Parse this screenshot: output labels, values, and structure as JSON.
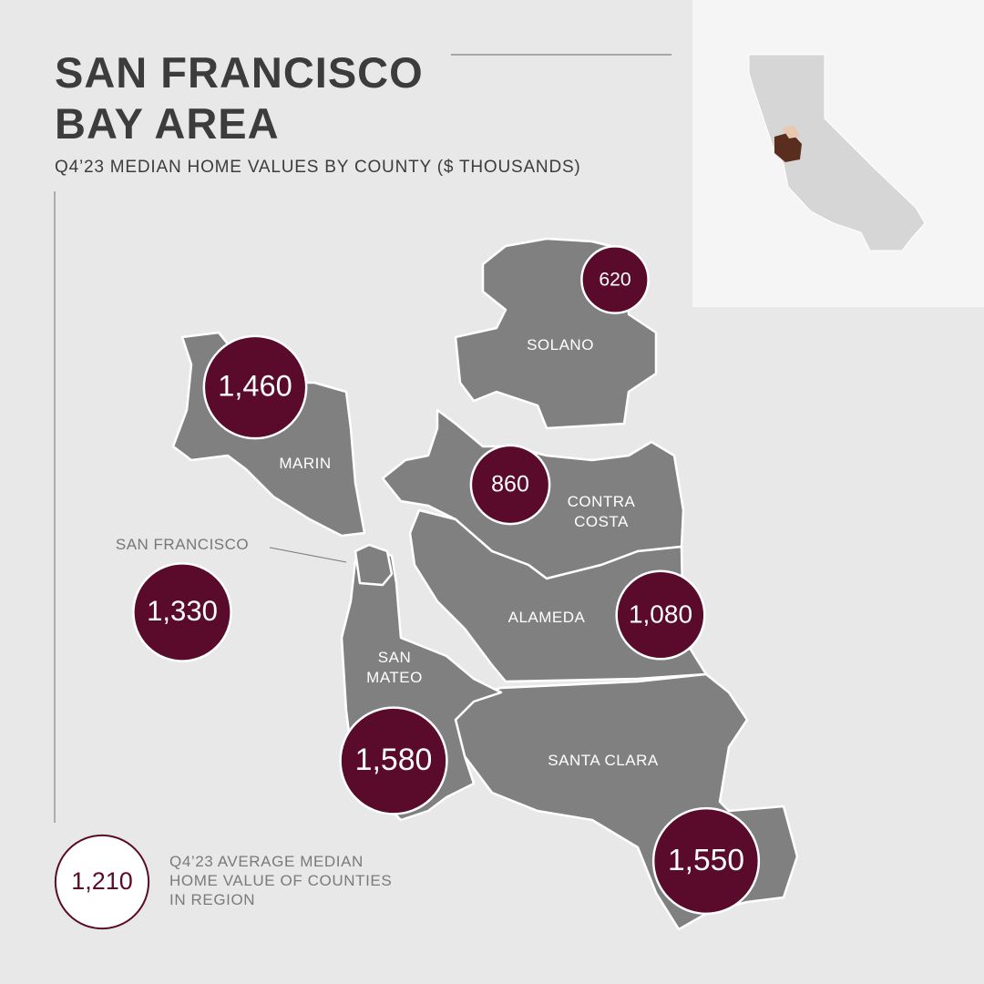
{
  "header": {
    "title": "SAN FRANCISCO BAY AREA",
    "subtitle": "Q4’23 MEDIAN HOME VALUES BY COUNTY ($ THOUSANDS)"
  },
  "counties": [
    {
      "name": "MARIN",
      "value": 1460,
      "label": "1,460"
    },
    {
      "name": "SAN FRANCISCO",
      "value": 1330,
      "label": "1,330"
    },
    {
      "name": "SAN MATEO",
      "value": 1580,
      "label": "1,580"
    },
    {
      "name": "SANTA CLARA",
      "value": 1550,
      "label": "1,550"
    },
    {
      "name": "ALAMEDA",
      "value": 1080,
      "label": "1,080"
    },
    {
      "name": "CONTRA COSTA",
      "value": 860,
      "label": "860"
    },
    {
      "name": "SOLANO",
      "value": 620,
      "label": "620"
    }
  ],
  "legend": {
    "value": 1210,
    "label": "1,210",
    "text": "Q4’23 AVERAGE MEDIAN HOME VALUE OF COUNTIES IN REGION"
  }
}
